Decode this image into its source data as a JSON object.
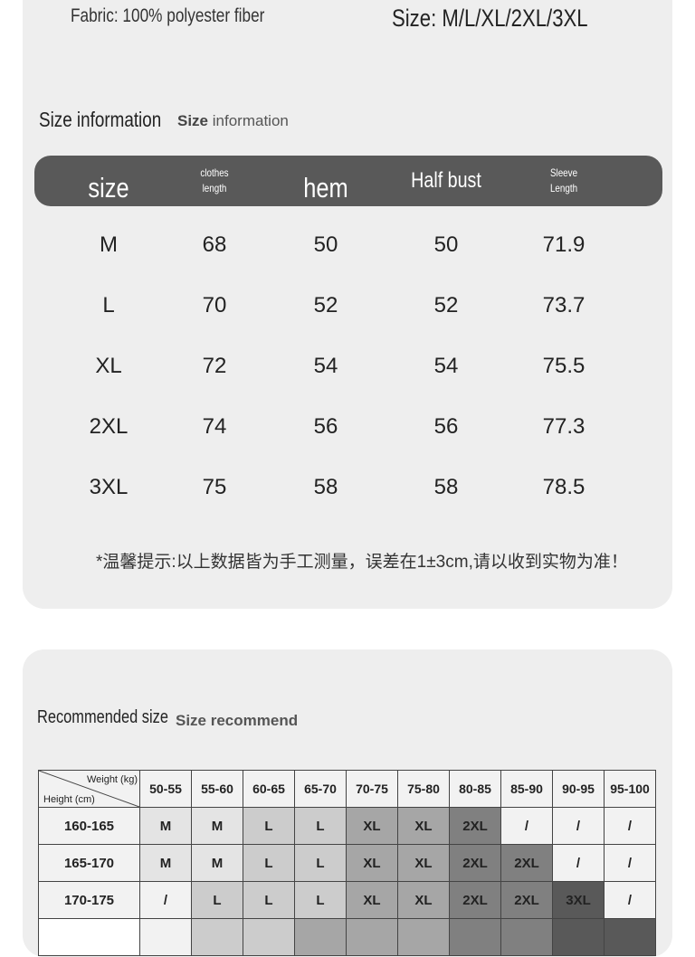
{
  "header": {
    "fabric": "Fabric: 100% polyester fiber",
    "sizes": "Size: M/L/XL/2XL/3XL"
  },
  "size_info": {
    "title": "Size information",
    "subtitle_bold": "Size",
    "subtitle_rest": " information",
    "columns": [
      {
        "label": "size",
        "style": "big"
      },
      {
        "label": "clothes\nlength",
        "style": "small"
      },
      {
        "label": "hem",
        "style": "big"
      },
      {
        "label": "Half bust",
        "style": "mid"
      },
      {
        "label": "Sleeve\nLength",
        "style": "small"
      }
    ],
    "rows": [
      [
        "M",
        "68",
        "50",
        "50",
        "71.9"
      ],
      [
        "L",
        "70",
        "52",
        "52",
        "73.7"
      ],
      [
        "XL",
        "72",
        "54",
        "54",
        "75.5"
      ],
      [
        "2XL",
        "74",
        "56",
        "56",
        "77.3"
      ],
      [
        "3XL",
        "75",
        "58",
        "58",
        "78.5"
      ]
    ],
    "note": "*温馨提示:以上数据皆为手工测量，误差在1±3cm,请以收到实物为准！",
    "header_color": "#595959"
  },
  "recommend": {
    "title": "Recommended size",
    "subtitle": "Size recommend",
    "corner_weight": "Weight (kg)",
    "corner_height": "Height (cm)",
    "weights": [
      "50-55",
      "55-60",
      "60-65",
      "65-70",
      "70-75",
      "75-80",
      "80-85",
      "85-90",
      "90-95",
      "95-100"
    ],
    "rows": [
      {
        "height": "160-165",
        "sizes": [
          "M",
          "M",
          "L",
          "L",
          "XL",
          "XL",
          "2XL",
          "/",
          "/",
          "/"
        ]
      },
      {
        "height": "165-170",
        "sizes": [
          "M",
          "M",
          "L",
          "L",
          "XL",
          "XL",
          "2XL",
          "2XL",
          "/",
          "/"
        ]
      },
      {
        "height": "170-175",
        "sizes": [
          "/",
          "L",
          "L",
          "L",
          "XL",
          "XL",
          "2XL",
          "2XL",
          "3XL",
          "/"
        ]
      }
    ],
    "partial_row_shades": [
      "#f2f2f2",
      "#cccccc",
      "#cccccc",
      "#a6a6a6",
      "#a6a6a6",
      "#a6a6a6",
      "#808080",
      "#808080",
      "#595959",
      "#595959"
    ],
    "size_colors": {
      "M": "#e4e4e4",
      "L": "#cccccc",
      "XL": "#a6a6a6",
      "2XL": "#808080",
      "3XL": "#595959",
      "/": "#f2f2f2"
    }
  }
}
